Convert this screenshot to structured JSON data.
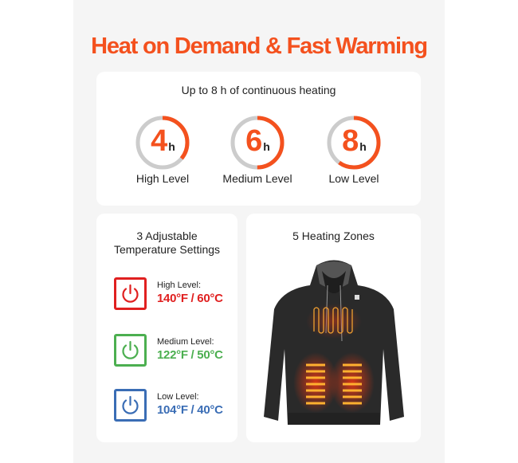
{
  "title": "Heat on Demand & Fast Warming",
  "colors": {
    "accent": "#f4511e",
    "track": "#cccccc",
    "high": "#e02020",
    "medium": "#4caf50",
    "low": "#3a6db5"
  },
  "runtime": {
    "heading": "Up to 8 h of continuous heating",
    "gauges": [
      {
        "value": "4",
        "unit": "h",
        "label": "High Level",
        "fill": 0.36
      },
      {
        "value": "6",
        "unit": "h",
        "label": "Medium Level",
        "fill": 0.5
      },
      {
        "value": "8",
        "unit": "h",
        "label": "Low Level",
        "fill": 0.6
      }
    ]
  },
  "settings": {
    "heading_line1": "3 Adjustable",
    "heading_line2": "Temperature Settings",
    "levels": [
      {
        "name": "High Level:",
        "value": "140°F / 60°C",
        "icon": "power-icon",
        "color": "#e02020"
      },
      {
        "name": "Medium Level:",
        "value": "122°F / 50°C",
        "icon": "power-icon",
        "color": "#4caf50"
      },
      {
        "name": "Low Level:",
        "value": "104°F / 40°C",
        "icon": "power-icon",
        "color": "#3a6db5"
      }
    ]
  },
  "zones": {
    "heading": "5 Heating Zones"
  }
}
